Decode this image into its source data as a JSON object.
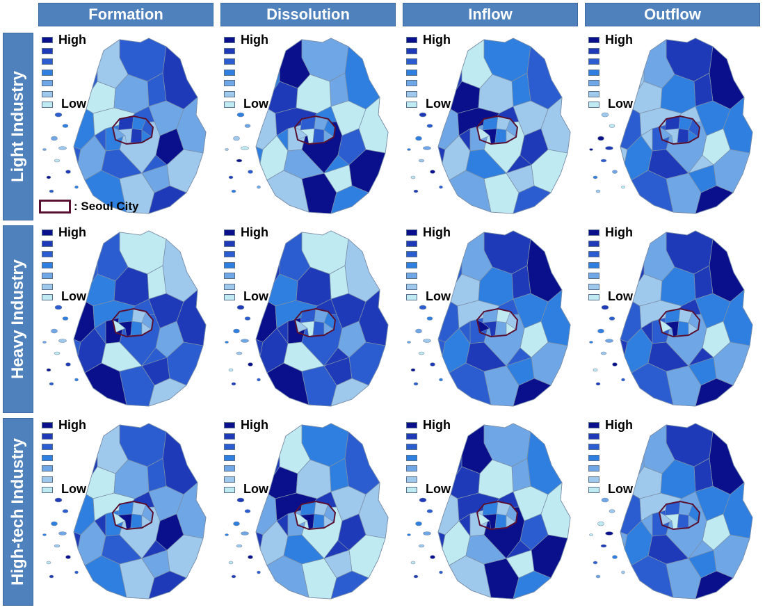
{
  "columns": [
    "Formation",
    "Dissolution",
    "Inflow",
    "Outflow"
  ],
  "rows": [
    "Light Industry",
    "Heavy Industry",
    "High-tech Industry"
  ],
  "legend": {
    "high_label": "High",
    "low_label": "Low",
    "classes": [
      "#0a0f8c",
      "#1f3ab8",
      "#2b5cd0",
      "#2f7fe0",
      "#6fa6e6",
      "#9ec9ec",
      "#bfeaf2"
    ]
  },
  "seoul_key": {
    "label": ": Seoul City",
    "outline_color": "#5a1030"
  },
  "colors": {
    "header_bg": "#4f81bd",
    "header_text": "#ffffff",
    "region_border": "#7a8fa8"
  },
  "panels": [
    {
      "row": 0,
      "col": 0,
      "outer": 2,
      "inner": 1
    },
    {
      "row": 0,
      "col": 1,
      "outer": 3,
      "inner": 2
    },
    {
      "row": 0,
      "col": 2,
      "outer": 1,
      "inner": 3
    },
    {
      "row": 0,
      "col": 3,
      "outer": 5,
      "inner": 1
    },
    {
      "row": 1,
      "col": 0,
      "outer": 2,
      "inner": 3
    },
    {
      "row": 1,
      "col": 1,
      "outer": 1,
      "inner": 2
    },
    {
      "row": 1,
      "col": 2,
      "outer": 2,
      "inner": 4
    },
    {
      "row": 1,
      "col": 3,
      "outer": 1,
      "inner": 3
    },
    {
      "row": 2,
      "col": 0,
      "outer": 1,
      "inner": 3
    },
    {
      "row": 2,
      "col": 1,
      "outer": 1,
      "inner": 3
    },
    {
      "row": 2,
      "col": 2,
      "outer": 1,
      "inner": 3
    },
    {
      "row": 2,
      "col": 3,
      "outer": 4,
      "inner": 2
    }
  ]
}
